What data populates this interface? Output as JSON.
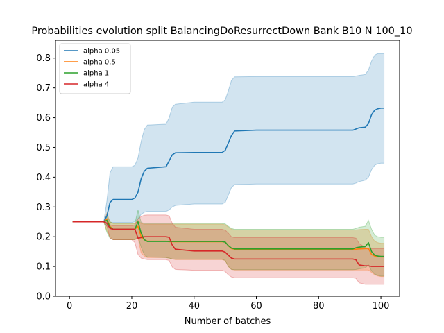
{
  "chart_data": {
    "type": "line",
    "title": "Probabilities evolution split BalancingDoResurrectDown Bank B10 N 100_10",
    "xlabel": "Number of batches",
    "ylabel": "",
    "xlim": [
      -4.5,
      106
    ],
    "ylim": [
      0.0,
      0.86
    ],
    "xticks": [
      0,
      20,
      40,
      60,
      80,
      100
    ],
    "yticks": [
      0.0,
      0.1,
      0.2,
      0.3,
      0.4,
      0.5,
      0.6,
      0.7,
      0.8
    ],
    "grid": false,
    "legend_position": "top-left",
    "series": [
      {
        "name": "alpha 0.05",
        "color": "#1f77b4",
        "band_opacity": 0.2,
        "x": [
          1,
          11,
          12,
          13,
          14,
          20,
          21,
          22,
          23,
          24,
          25,
          31,
          32,
          33,
          34,
          40,
          49,
          50,
          51,
          52,
          53,
          60,
          91,
          92,
          93,
          95,
          96,
          97,
          98,
          99,
          100,
          101
        ],
        "mean": [
          0.25,
          0.25,
          0.27,
          0.315,
          0.325,
          0.325,
          0.33,
          0.35,
          0.395,
          0.42,
          0.43,
          0.435,
          0.455,
          0.475,
          0.482,
          0.483,
          0.483,
          0.49,
          0.515,
          0.54,
          0.555,
          0.558,
          0.558,
          0.562,
          0.566,
          0.568,
          0.58,
          0.61,
          0.625,
          0.63,
          0.632,
          0.632
        ],
        "upper": [
          0.25,
          0.25,
          0.32,
          0.415,
          0.435,
          0.435,
          0.44,
          0.465,
          0.52,
          0.56,
          0.575,
          0.578,
          0.6,
          0.635,
          0.645,
          0.652,
          0.652,
          0.66,
          0.69,
          0.725,
          0.737,
          0.738,
          0.738,
          0.74,
          0.742,
          0.745,
          0.76,
          0.79,
          0.81,
          0.815,
          0.815,
          0.815
        ],
        "lower": [
          0.25,
          0.25,
          0.235,
          0.245,
          0.248,
          0.248,
          0.25,
          0.26,
          0.275,
          0.282,
          0.285,
          0.285,
          0.29,
          0.3,
          0.305,
          0.31,
          0.31,
          0.315,
          0.34,
          0.365,
          0.375,
          0.377,
          0.377,
          0.38,
          0.385,
          0.39,
          0.4,
          0.425,
          0.44,
          0.445,
          0.447,
          0.447
        ]
      },
      {
        "name": "alpha 0.5",
        "color": "#ff7f0e",
        "band_opacity": 0.25,
        "x": [
          1,
          11,
          12,
          13,
          14,
          20,
          21,
          22,
          23,
          24,
          25,
          31,
          32,
          33,
          34,
          40,
          49,
          50,
          51,
          52,
          53,
          60,
          91,
          92,
          93,
          95,
          96,
          97,
          98,
          99,
          100,
          101
        ],
        "mean": [
          0.25,
          0.25,
          0.26,
          0.235,
          0.225,
          0.225,
          0.225,
          0.235,
          0.2,
          0.19,
          0.185,
          0.185,
          0.183,
          0.183,
          0.183,
          0.183,
          0.183,
          0.182,
          0.17,
          0.16,
          0.158,
          0.158,
          0.158,
          0.158,
          0.159,
          0.16,
          0.16,
          0.14,
          0.135,
          0.133,
          0.132,
          0.132
        ],
        "upper": [
          0.25,
          0.25,
          0.28,
          0.25,
          0.245,
          0.245,
          0.245,
          0.255,
          0.245,
          0.242,
          0.242,
          0.242,
          0.242,
          0.242,
          0.242,
          0.242,
          0.242,
          0.24,
          0.232,
          0.225,
          0.223,
          0.223,
          0.223,
          0.223,
          0.224,
          0.225,
          0.225,
          0.2,
          0.185,
          0.18,
          0.178,
          0.178
        ],
        "lower": [
          0.25,
          0.25,
          0.22,
          0.2,
          0.19,
          0.19,
          0.19,
          0.195,
          0.145,
          0.135,
          0.13,
          0.13,
          0.128,
          0.125,
          0.123,
          0.123,
          0.123,
          0.12,
          0.1,
          0.09,
          0.088,
          0.088,
          0.088,
          0.088,
          0.088,
          0.088,
          0.088,
          0.08,
          0.072,
          0.068,
          0.066,
          0.066
        ]
      },
      {
        "name": "alpha 1",
        "color": "#2ca02c",
        "band_opacity": 0.2,
        "x": [
          1,
          11,
          12,
          13,
          14,
          20,
          21,
          22,
          23,
          24,
          25,
          31,
          32,
          33,
          34,
          40,
          49,
          50,
          51,
          52,
          53,
          60,
          91,
          92,
          93,
          95,
          96,
          97,
          98,
          99,
          100,
          101
        ],
        "mean": [
          0.25,
          0.25,
          0.255,
          0.232,
          0.225,
          0.225,
          0.225,
          0.25,
          0.212,
          0.19,
          0.184,
          0.184,
          0.184,
          0.184,
          0.184,
          0.184,
          0.184,
          0.182,
          0.17,
          0.162,
          0.159,
          0.159,
          0.159,
          0.163,
          0.165,
          0.167,
          0.18,
          0.15,
          0.138,
          0.135,
          0.134,
          0.134
        ],
        "upper": [
          0.25,
          0.25,
          0.27,
          0.25,
          0.245,
          0.245,
          0.245,
          0.29,
          0.248,
          0.245,
          0.245,
          0.245,
          0.245,
          0.245,
          0.245,
          0.245,
          0.245,
          0.243,
          0.235,
          0.228,
          0.225,
          0.225,
          0.225,
          0.228,
          0.232,
          0.235,
          0.255,
          0.225,
          0.205,
          0.2,
          0.198,
          0.198
        ],
        "lower": [
          0.25,
          0.25,
          0.215,
          0.195,
          0.19,
          0.19,
          0.19,
          0.2,
          0.165,
          0.14,
          0.132,
          0.13,
          0.128,
          0.125,
          0.124,
          0.124,
          0.124,
          0.12,
          0.1,
          0.09,
          0.089,
          0.089,
          0.089,
          0.09,
          0.092,
          0.095,
          0.105,
          0.085,
          0.075,
          0.07,
          0.068,
          0.068
        ]
      },
      {
        "name": "alpha 4",
        "color": "#d62728",
        "band_opacity": 0.2,
        "x": [
          1,
          11,
          12,
          13,
          14,
          20,
          21,
          22,
          23,
          24,
          25,
          31,
          32,
          33,
          34,
          40,
          49,
          50,
          51,
          52,
          53,
          60,
          91,
          92,
          93,
          95,
          96,
          97,
          98,
          99,
          100,
          101
        ],
        "mean": [
          0.25,
          0.25,
          0.245,
          0.228,
          0.225,
          0.225,
          0.225,
          0.195,
          0.197,
          0.2,
          0.2,
          0.2,
          0.198,
          0.172,
          0.158,
          0.152,
          0.152,
          0.148,
          0.138,
          0.128,
          0.125,
          0.125,
          0.125,
          0.122,
          0.105,
          0.102,
          0.102,
          0.1,
          0.1,
          0.1,
          0.1,
          0.1
        ],
        "upper": [
          0.25,
          0.25,
          0.25,
          0.24,
          0.237,
          0.237,
          0.24,
          0.26,
          0.268,
          0.272,
          0.273,
          0.273,
          0.27,
          0.245,
          0.232,
          0.225,
          0.225,
          0.222,
          0.212,
          0.2,
          0.197,
          0.197,
          0.197,
          0.195,
          0.178,
          0.163,
          0.16,
          0.16,
          0.16,
          0.16,
          0.16,
          0.16
        ],
        "lower": [
          0.25,
          0.25,
          0.235,
          0.195,
          0.19,
          0.19,
          0.18,
          0.14,
          0.128,
          0.125,
          0.123,
          0.123,
          0.12,
          0.098,
          0.09,
          0.087,
          0.087,
          0.083,
          0.072,
          0.065,
          0.062,
          0.062,
          0.062,
          0.06,
          0.045,
          0.04,
          0.04,
          0.04,
          0.04,
          0.04,
          0.04,
          0.04
        ]
      }
    ]
  }
}
